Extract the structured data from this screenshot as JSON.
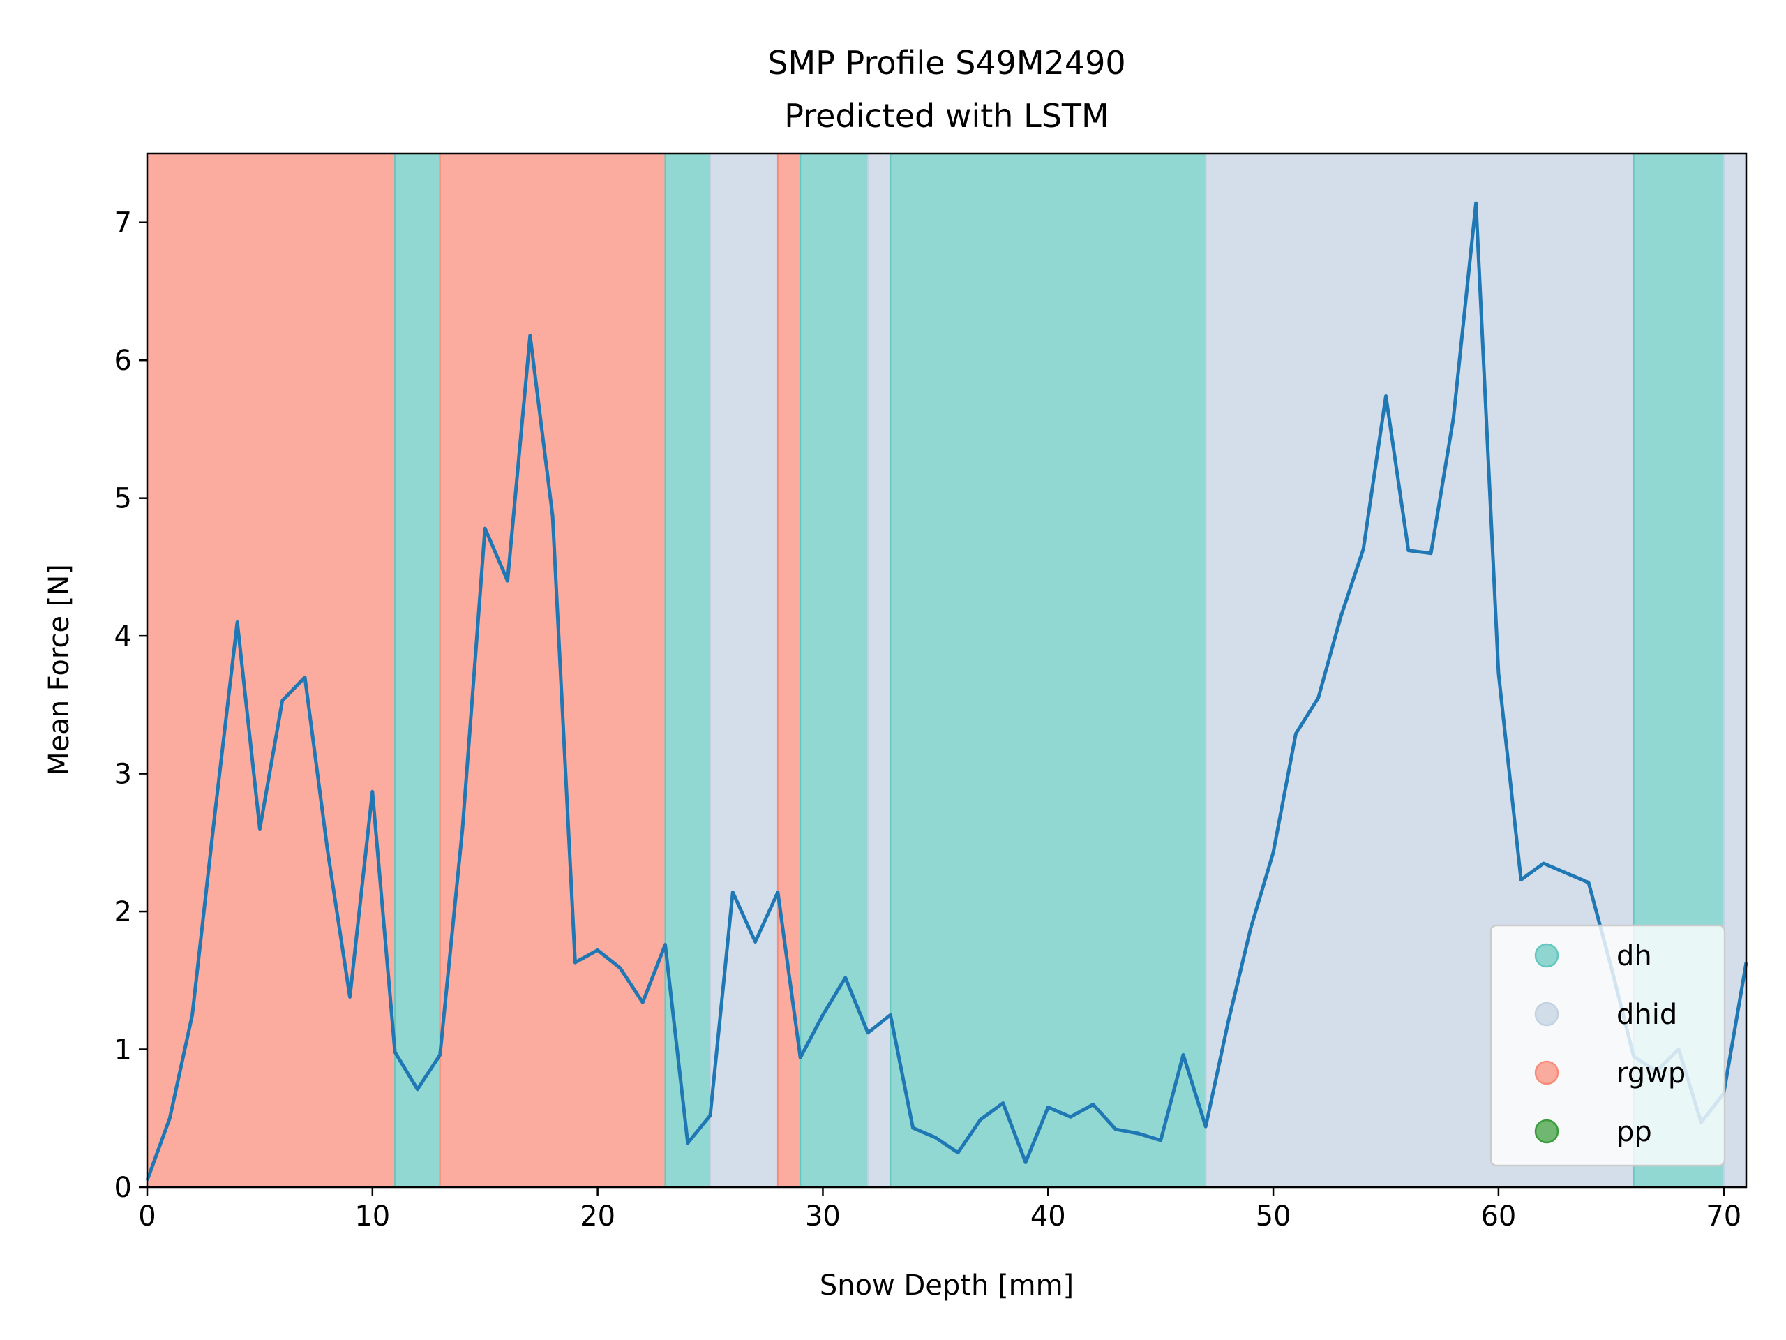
{
  "chart_data": {
    "type": "line",
    "title": "SMP Profile S49M2490",
    "subtitle": "Predicted with LSTM",
    "xlabel": "Snow Depth [mm]",
    "ylabel": "Mean Force [N]",
    "xlim": [
      0,
      71
    ],
    "ylim": [
      0,
      7.5
    ],
    "xticks": [
      "0",
      "10",
      "20",
      "30",
      "40",
      "50",
      "60",
      "70"
    ],
    "yticks": [
      "0",
      "1",
      "2",
      "3",
      "4",
      "5",
      "6",
      "7"
    ],
    "grid": false,
    "legend_position": "lower-right",
    "line_color": "#1f77b4",
    "series": [
      {
        "x": [
          0,
          1,
          2,
          3,
          4,
          5,
          6,
          7,
          8,
          9,
          10,
          11,
          12,
          13,
          14,
          15,
          16,
          17,
          18,
          19,
          20,
          21,
          22,
          23,
          24,
          25,
          26,
          27,
          28,
          29,
          30,
          31,
          32,
          33,
          34,
          35,
          36,
          37,
          38,
          39,
          40,
          41,
          42,
          43,
          44,
          45,
          46,
          47,
          48,
          49,
          50,
          51,
          52,
          53,
          54,
          55,
          56,
          57,
          58,
          59,
          60,
          61,
          62,
          63,
          64,
          65,
          66,
          67,
          68,
          69,
          70,
          71
        ],
        "values": [
          0.05,
          0.5,
          1.25,
          2.7,
          4.1,
          2.6,
          3.53,
          3.7,
          2.45,
          1.38,
          2.87,
          0.98,
          0.71,
          0.96,
          2.6,
          4.78,
          4.4,
          6.18,
          4.87,
          1.63,
          1.72,
          1.59,
          1.34,
          1.76,
          0.32,
          0.52,
          2.14,
          1.78,
          2.14,
          0.94,
          1.25,
          1.52,
          1.12,
          1.25,
          0.43,
          0.36,
          0.25,
          0.49,
          0.61,
          0.18,
          0.58,
          0.51,
          0.6,
          0.42,
          0.39,
          0.34,
          0.96,
          0.44,
          1.2,
          1.88,
          2.43,
          3.29,
          3.55,
          4.14,
          4.63,
          5.74,
          4.62,
          4.6,
          5.58,
          7.14,
          3.73,
          2.23,
          2.35,
          2.28,
          2.21,
          1.6,
          0.95,
          0.84,
          1.0,
          0.47,
          0.68,
          1.63
        ]
      }
    ],
    "regions": [
      {
        "start": 0,
        "end": 11,
        "label": "rgwp"
      },
      {
        "start": 11,
        "end": 13,
        "label": "dh"
      },
      {
        "start": 13,
        "end": 23,
        "label": "rgwp"
      },
      {
        "start": 23,
        "end": 25,
        "label": "dh"
      },
      {
        "start": 25,
        "end": 28,
        "label": "dhid"
      },
      {
        "start": 28,
        "end": 29,
        "label": "rgwp"
      },
      {
        "start": 29,
        "end": 32,
        "label": "dh"
      },
      {
        "start": 32,
        "end": 33,
        "label": "dhid"
      },
      {
        "start": 33,
        "end": 47,
        "label": "dh"
      },
      {
        "start": 47,
        "end": 66,
        "label": "dhid"
      },
      {
        "start": 66,
        "end": 70,
        "label": "dh"
      },
      {
        "start": 70,
        "end": 71,
        "label": "dhid"
      }
    ],
    "classes": [
      {
        "label": "dh",
        "color": "#66c7c0"
      },
      {
        "label": "dhid",
        "color": "#c4d1e3"
      },
      {
        "label": "rgwp",
        "color": "#fa8c7a"
      },
      {
        "label": "pp",
        "color": "#3b9c3b"
      }
    ],
    "legend": [
      "dh",
      "dhid",
      "rgwp",
      "pp"
    ]
  }
}
